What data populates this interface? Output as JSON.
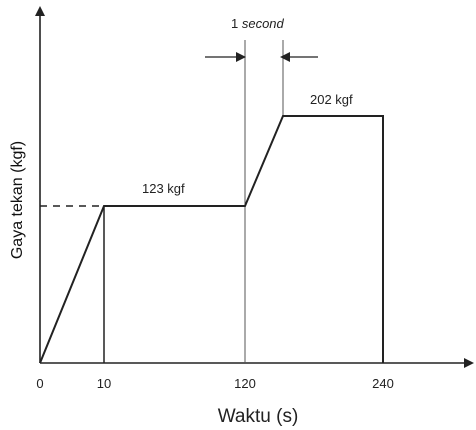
{
  "chart_data": {
    "type": "line",
    "title": "",
    "xlabel": "Waktu (s)",
    "ylabel": "Gaya tekan (kgf)",
    "x_ticks": [
      "0",
      "10",
      "120",
      "240"
    ],
    "series": [
      {
        "points": [
          {
            "x": 0,
            "y": 0
          },
          {
            "x": 10,
            "y": 123
          },
          {
            "x": 120,
            "y": 123
          },
          {
            "x": 121,
            "y": 202
          },
          {
            "x": 240,
            "y": 202
          },
          {
            "x": 240,
            "y": 0
          }
        ]
      }
    ],
    "vertical_lines_at": [
      10,
      120
    ],
    "dashed_reference": {
      "y": 123
    },
    "data_labels": [
      {
        "text": "123 kgf",
        "at_y": 123
      },
      {
        "text": "202 kgf",
        "at_y": 202
      }
    ],
    "annotation": {
      "prefix": "1 ",
      "emphasis": "second"
    },
    "grid": false,
    "legend": "none"
  }
}
